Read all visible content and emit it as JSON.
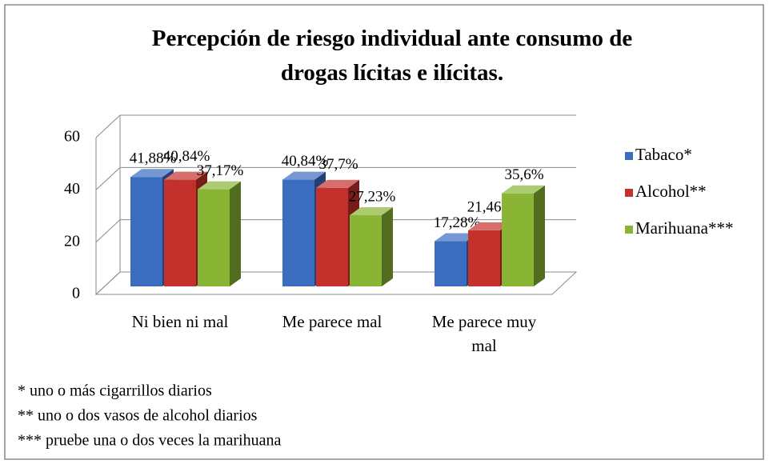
{
  "chart_data": {
    "type": "bar3d",
    "title": "Percepción de riesgo individual  ante consumo de drogas lícitas e ilícitas.",
    "categories": [
      "Ni bien ni mal",
      "Me parece mal",
      "Me parece muy mal"
    ],
    "series": [
      {
        "name": "Tabaco*",
        "color": "#3a6cc0",
        "values": [
          41.88,
          40.84,
          17.28
        ],
        "value_labels": [
          "41,88%",
          "40,84%",
          "17,28%"
        ]
      },
      {
        "name": "Alcohol**",
        "color": "#c4302b",
        "values": [
          40.84,
          37.7,
          21.46
        ],
        "value_labels": [
          "40,84%",
          "37,7%",
          "21,46%"
        ]
      },
      {
        "name": "Marihuana***",
        "color": "#8ab534",
        "values": [
          37.17,
          27.23,
          35.6
        ],
        "value_labels": [
          "37,17%",
          "27,23%",
          "35,6%"
        ]
      }
    ],
    "ylim": [
      0,
      60
    ],
    "yticks": [
      0,
      20,
      40,
      60
    ],
    "grid": true,
    "legend": "right",
    "notes": [
      "* uno o más cigarrillos diarios",
      "** uno o dos vasos de alcohol  diarios",
      "*** pruebe una o dos veces la marihuana"
    ]
  }
}
